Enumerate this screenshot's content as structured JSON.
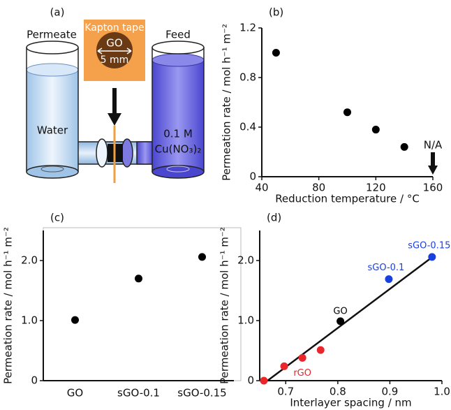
{
  "diagram": {
    "panel": "(a)",
    "left_label": "Permeate",
    "right_label": "Feed",
    "tape_label": "Kapton tape",
    "membrane_label": "GO",
    "size_label": "5 mm",
    "left_liquid": "Water",
    "right_liquid_1": "0.1 M",
    "right_liquid_2": "Cu(NO₃)₂"
  },
  "chart_data": [
    {
      "type": "scatter",
      "panel": "(b)",
      "x_label": "Reduction temperature / °C",
      "y_label": "Permeation rate / mol h⁻¹ m⁻²",
      "x": [
        50,
        100,
        120,
        140
      ],
      "values": [
        1.0,
        0.52,
        0.38,
        0.24
      ],
      "color": "#000000",
      "xlim": [
        40,
        160
      ],
      "xticks": [
        40,
        80,
        120,
        160
      ],
      "ylim": [
        0,
        1.2
      ],
      "yticks": [
        0,
        0.4,
        0.8,
        1.2
      ],
      "annotations": [
        {
          "text": "N/A",
          "x": 160
        }
      ]
    },
    {
      "type": "scatter",
      "panel": "(c)",
      "y_label": "Permeation rate / mol h⁻¹ m⁻²",
      "categories": [
        "GO",
        "sGO-0.1",
        "sGO-0.15"
      ],
      "values": [
        1.01,
        1.7,
        2.06
      ],
      "color": "#000000",
      "ylim": [
        0,
        2.5
      ],
      "yticks": [
        0,
        {
          "value": 1,
          "label": "1.0"
        },
        {
          "value": 2,
          "label": "2.0"
        }
      ]
    },
    {
      "type": "scatter",
      "panel": "(d)",
      "x_label": "Interlayer spacing / nm",
      "y_label": "Permeation rate / mol h⁻¹ m⁻²",
      "series": [
        {
          "name": "rGO",
          "color": "#e8262b",
          "x": [
            0.658,
            0.697,
            0.732,
            0.767
          ],
          "values": [
            0,
            0.24,
            0.38,
            0.51
          ]
        },
        {
          "name": "GO",
          "color": "#000000",
          "x": [
            0.805
          ],
          "values": [
            0.99
          ]
        },
        {
          "color": "#1a3fe0",
          "x": [
            0.898,
            0.981
          ],
          "values": [
            1.69,
            2.06
          ],
          "point_labels": [
            "sGO-0.1",
            "sGO-0.15"
          ]
        }
      ],
      "fit_line": {
        "x": [
          0.665,
          0.985
        ],
        "values": [
          0,
          2.08
        ]
      },
      "xlim": [
        0.65,
        1.0
      ],
      "xticks": [
        0.7,
        0.8,
        0.9,
        {
          "value": 1,
          "label": "1.0"
        }
      ],
      "ylim": [
        0,
        2.5
      ],
      "yticks": [
        0,
        {
          "value": 1,
          "label": "1.0"
        },
        {
          "value": 2,
          "label": "2.0"
        }
      ]
    }
  ]
}
